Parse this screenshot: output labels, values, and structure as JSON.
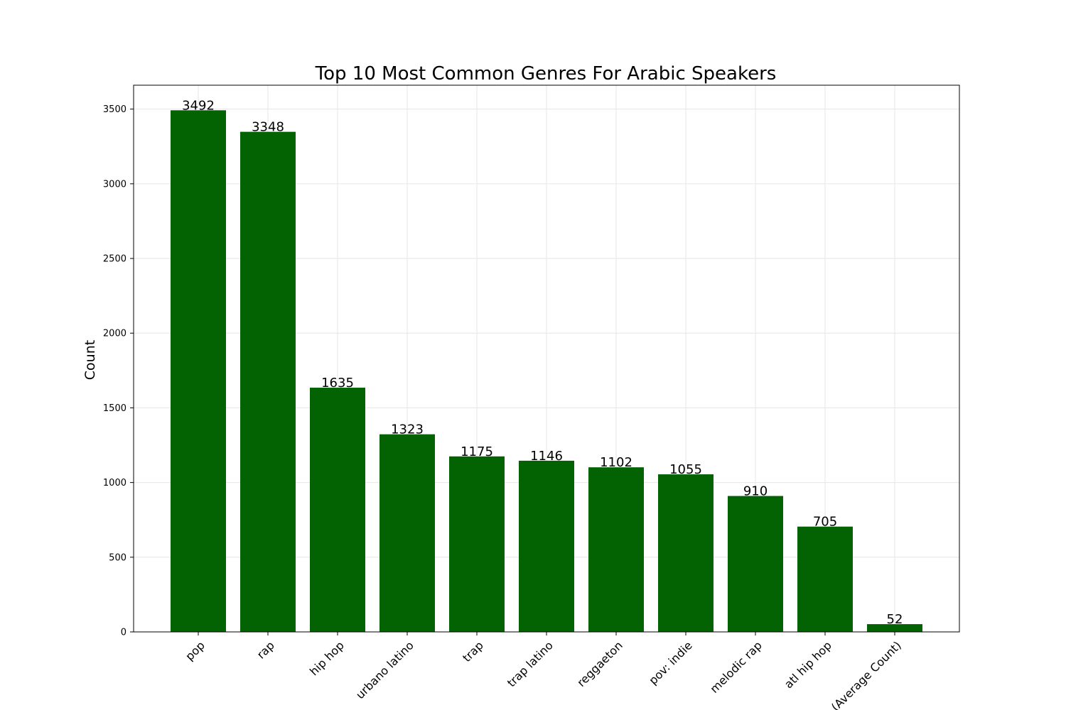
{
  "chart_data": {
    "type": "bar",
    "title": "Top 10 Most Common Genres For Arabic Speakers",
    "xlabel": "",
    "ylabel": "Count",
    "categories": [
      "pop",
      "rap",
      "hip hop",
      "urbano latino",
      "trap",
      "trap latino",
      "reggaeton",
      "pov: indie",
      "melodic rap",
      "atl hip hop",
      "(Average Count)"
    ],
    "values": [
      3492,
      3348,
      1635,
      1323,
      1175,
      1146,
      1102,
      1055,
      910,
      705,
      52
    ],
    "ylim": [
      0,
      3660
    ],
    "yticks": [
      0,
      500,
      1000,
      1500,
      2000,
      2500,
      3000,
      3500
    ],
    "grid": true,
    "bar_color": "#036303"
  }
}
